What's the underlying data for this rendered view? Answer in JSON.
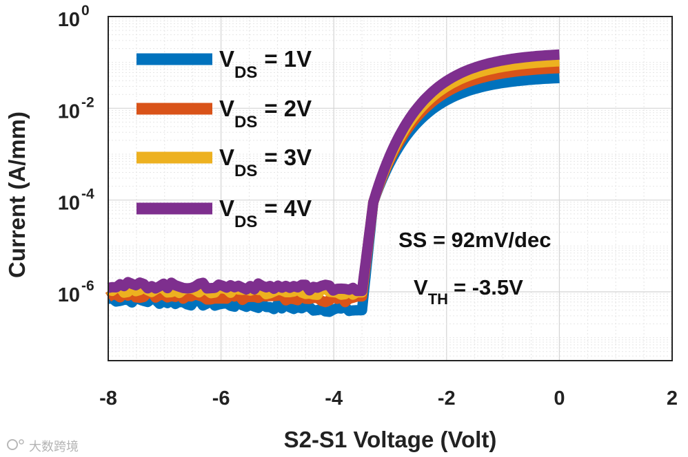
{
  "chart_data": {
    "type": "line",
    "xlabel": "S2-S1 Voltage (Volt)",
    "ylabel": "Current (A/mm)",
    "yscale": "log",
    "xlim": [
      -8,
      2
    ],
    "ylim_log10": [
      -7.5,
      0
    ],
    "x_ticks": [
      -8,
      -6,
      -4,
      -2,
      0,
      2
    ],
    "x_tick_labels": [
      "-8",
      "-6",
      "-4",
      "-2",
      "0",
      "2"
    ],
    "y_ticks": [
      {
        "exp": 0,
        "base": "10",
        "sup": "0"
      },
      {
        "exp": -2,
        "base": "10",
        "sup": "-2"
      },
      {
        "exp": -4,
        "base": "10",
        "sup": "-4"
      },
      {
        "exp": -6,
        "base": "10",
        "sup": "-6"
      }
    ],
    "grid": true,
    "legend_position": "top-left",
    "series": [
      {
        "name_main": "V",
        "name_sub": "DS",
        "name_tail": "= 1V",
        "color": "#0072BD",
        "off_current_log10": -6.15,
        "on_current_log10": -1.3
      },
      {
        "name_main": "V",
        "name_sub": "DS",
        "name_tail": "= 2V",
        "color": "#D95319",
        "off_current_log10": -6.05,
        "on_current_log10": -1.08
      },
      {
        "name_main": "V",
        "name_sub": "DS",
        "name_tail": "= 3V",
        "color": "#EDB120",
        "off_current_log10": -5.95,
        "on_current_log10": -0.93
      },
      {
        "name_main": "V",
        "name_sub": "DS",
        "name_tail": "= 4V",
        "color": "#7E2F8E",
        "off_current_log10": -5.85,
        "on_current_log10": -0.78
      }
    ],
    "turn_on_voltage": -3.45,
    "annotations": {
      "ss_text": "SS = 92mV/dec",
      "vth_main": "V",
      "vth_sub": "TH",
      "vth_tail": "= -3.5V"
    }
  },
  "watermark": "大数跨境"
}
